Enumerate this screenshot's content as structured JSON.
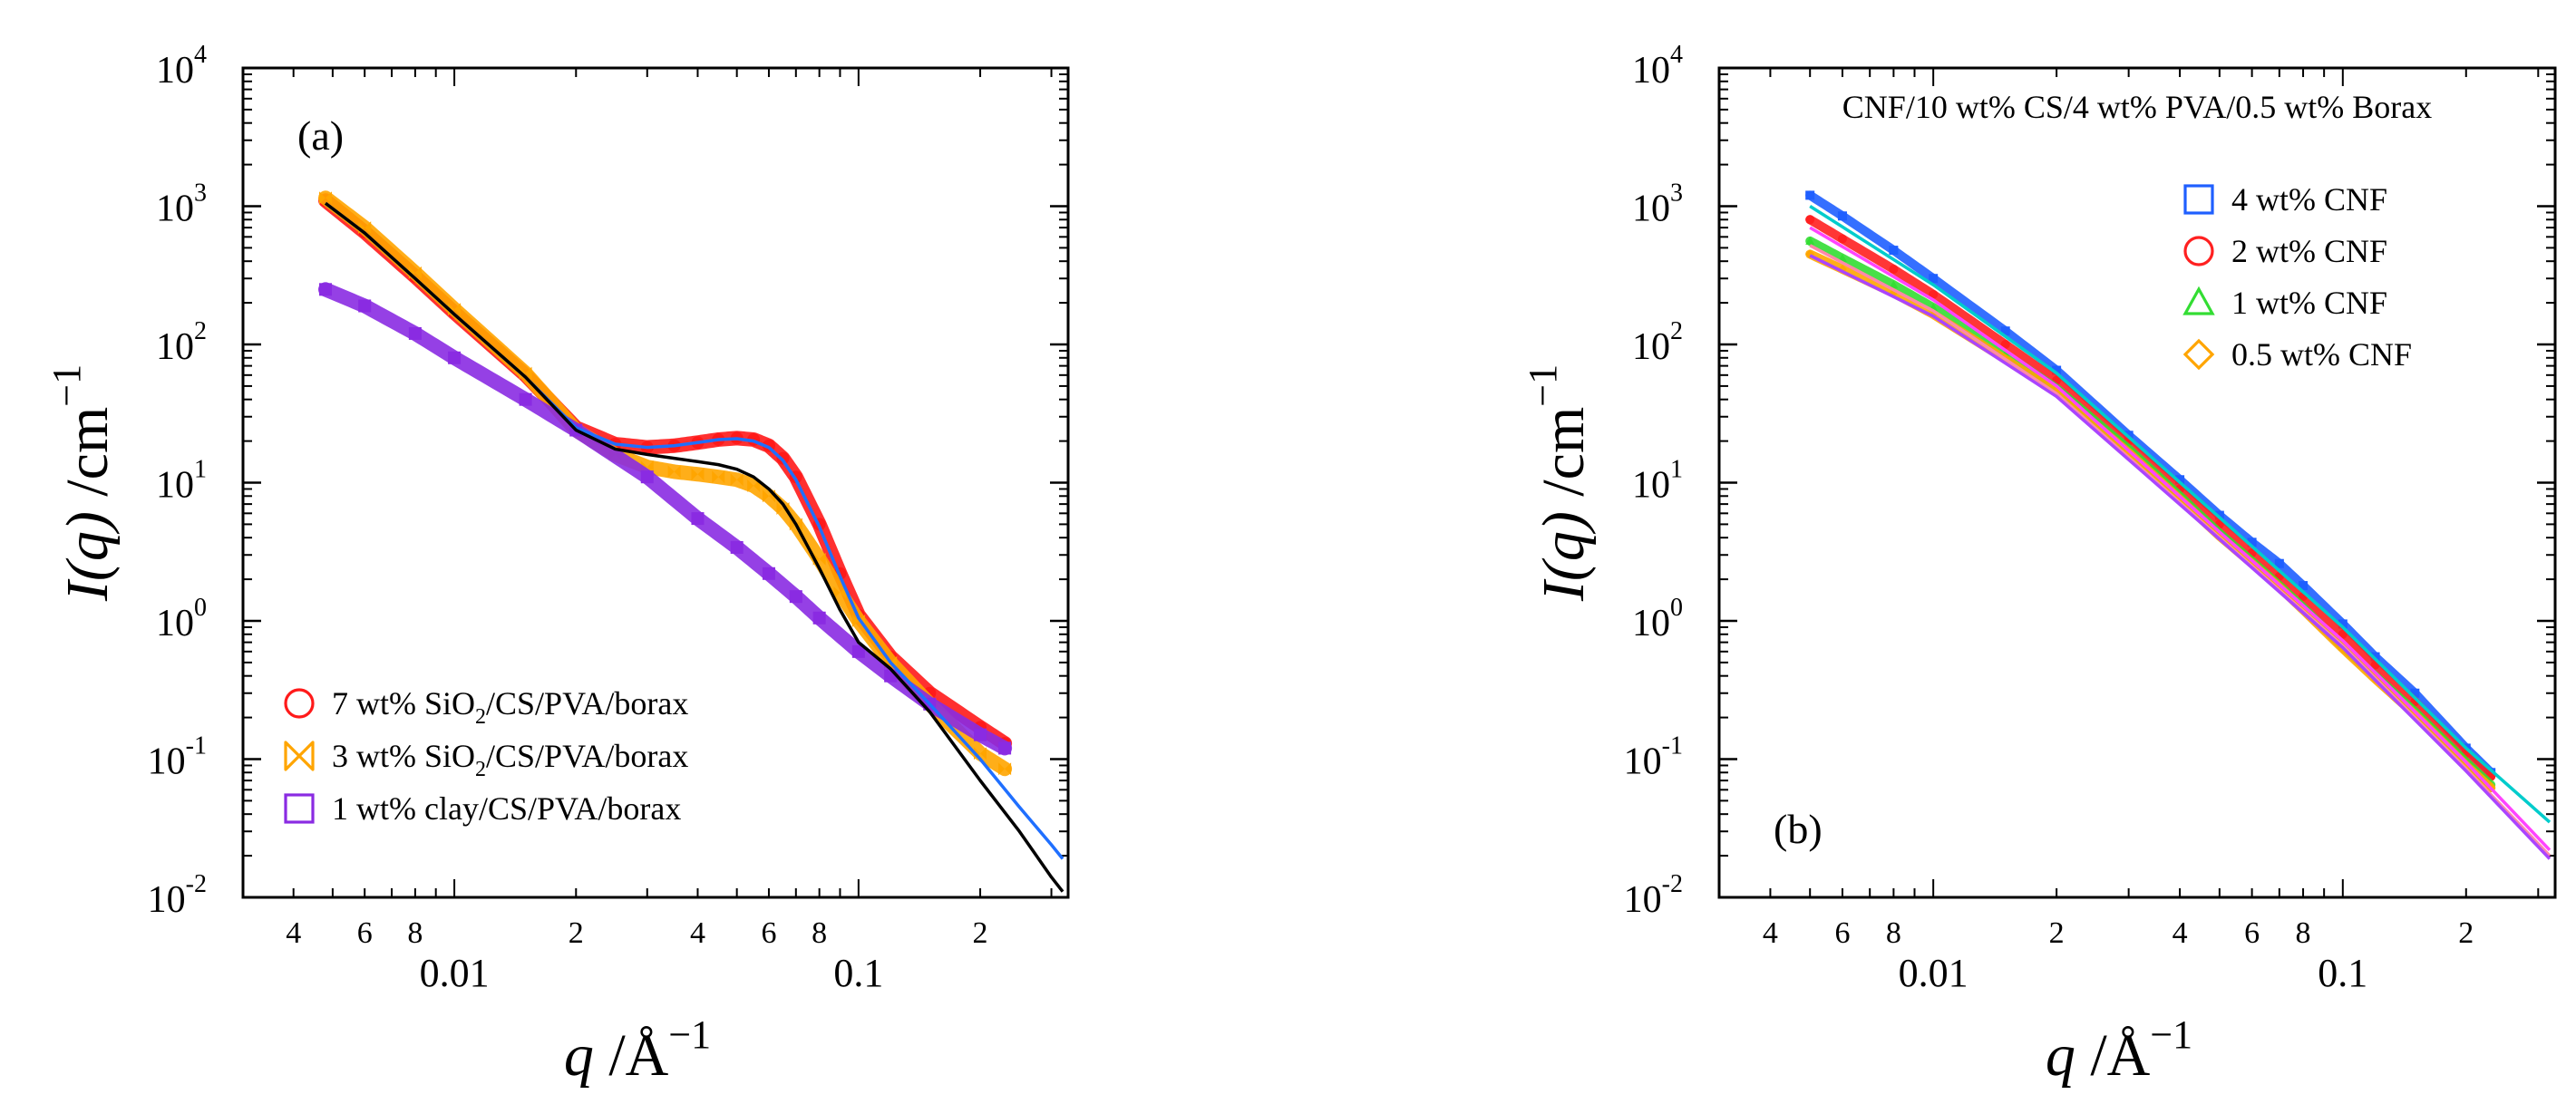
{
  "chart_data": [
    {
      "type": "scatter",
      "panel_label": "(a)",
      "title": "",
      "xlabel": {
        "var": "q",
        "unit": "Å",
        "exp": "−1"
      },
      "ylabel": {
        "var": "I(q)",
        "unit": "cm",
        "exp": "−1"
      },
      "xscale": "log",
      "yscale": "log",
      "xlim": [
        0.003,
        0.33
      ],
      "ylim": [
        0.01,
        10000
      ],
      "x_ticks": [
        {
          "v": 0.004,
          "label": "4"
        },
        {
          "v": 0.006,
          "label": "6"
        },
        {
          "v": 0.008,
          "label": "8"
        },
        {
          "v": 0.01,
          "label": "0.01"
        },
        {
          "v": 0.02,
          "label": "2"
        },
        {
          "v": 0.04,
          "label": "4"
        },
        {
          "v": 0.06,
          "label": "6"
        },
        {
          "v": 0.08,
          "label": "8"
        },
        {
          "v": 0.1,
          "label": "0.1"
        },
        {
          "v": 0.2,
          "label": "2"
        }
      ],
      "y_ticks": [
        {
          "v": 0.01,
          "base": "10",
          "exp": "-2"
        },
        {
          "v": 0.1,
          "base": "10",
          "exp": "-1"
        },
        {
          "v": 1,
          "base": "10",
          "exp": "0"
        },
        {
          "v": 10,
          "base": "10",
          "exp": "1"
        },
        {
          "v": 100,
          "base": "10",
          "exp": "2"
        },
        {
          "v": 1000,
          "base": "10",
          "exp": "3"
        },
        {
          "v": 10000,
          "base": "10",
          "exp": "4"
        }
      ],
      "legend_position": "bottom-left",
      "series": [
        {
          "name": "7 wt% SiO2/CS/PVA/borax",
          "name_parts": [
            "7 wt% SiO",
            "2",
            "/CS/PVA/borax"
          ],
          "marker": "circle",
          "color": "#ff1a1a",
          "x": [
            0.0048,
            0.006,
            0.008,
            0.01,
            0.015,
            0.02,
            0.025,
            0.03,
            0.035,
            0.04,
            0.045,
            0.05,
            0.055,
            0.06,
            0.065,
            0.07,
            0.08,
            0.09,
            0.1,
            0.12,
            0.15,
            0.2,
            0.23
          ],
          "y": [
            1100,
            650,
            310,
            170,
            60,
            25,
            19,
            18,
            18.5,
            19.5,
            20.5,
            21,
            20.5,
            18.5,
            15,
            11,
            5,
            2.2,
            1.1,
            0.55,
            0.3,
            0.17,
            0.13
          ]
        },
        {
          "name": "3 wt% SiO2/CS/PVA/borax",
          "name_parts": [
            "3 wt% SiO",
            "2",
            "/CS/PVA/borax"
          ],
          "marker": "bowtie",
          "color": "#ffa500",
          "x": [
            0.0048,
            0.006,
            0.008,
            0.01,
            0.015,
            0.02,
            0.025,
            0.03,
            0.035,
            0.04,
            0.045,
            0.05,
            0.055,
            0.06,
            0.065,
            0.07,
            0.08,
            0.09,
            0.1,
            0.12,
            0.15,
            0.2,
            0.23
          ],
          "y": [
            1150,
            700,
            330,
            180,
            62,
            24,
            16,
            13,
            12,
            11.5,
            11,
            10.5,
            9.5,
            8,
            6.5,
            5,
            2.8,
            1.6,
            1.0,
            0.5,
            0.25,
            0.11,
            0.085
          ]
        },
        {
          "name": "1 wt% clay/CS/PVA/borax",
          "name_parts": [
            "1 wt% clay/CS/PVA/borax"
          ],
          "marker": "square",
          "color": "#8a2be2",
          "x": [
            0.0048,
            0.006,
            0.008,
            0.01,
            0.015,
            0.02,
            0.03,
            0.04,
            0.05,
            0.06,
            0.07,
            0.08,
            0.1,
            0.12,
            0.15,
            0.2,
            0.23
          ],
          "y": [
            250,
            190,
            120,
            80,
            40,
            24,
            11,
            5.5,
            3.4,
            2.2,
            1.5,
            1.05,
            0.6,
            0.4,
            0.25,
            0.15,
            0.12
          ]
        }
      ],
      "fits": [
        {
          "color": "#1f6fff",
          "x": [
            0.0048,
            0.006,
            0.008,
            0.01,
            0.015,
            0.02,
            0.025,
            0.03,
            0.035,
            0.04,
            0.045,
            0.05,
            0.055,
            0.06,
            0.065,
            0.07,
            0.08,
            0.09,
            0.1,
            0.12,
            0.15,
            0.2,
            0.25,
            0.3,
            0.32
          ],
          "y": [
            1050,
            640,
            300,
            165,
            58,
            25,
            19,
            18,
            18.5,
            19.5,
            20.5,
            20.8,
            20,
            18,
            14.5,
            10.5,
            4.8,
            2.1,
            1.05,
            0.5,
            0.25,
            0.1,
            0.045,
            0.024,
            0.019
          ]
        },
        {
          "color": "#000000",
          "x": [
            0.0048,
            0.006,
            0.008,
            0.01,
            0.015,
            0.02,
            0.025,
            0.03,
            0.035,
            0.04,
            0.045,
            0.05,
            0.055,
            0.06,
            0.065,
            0.07,
            0.08,
            0.09,
            0.1,
            0.12,
            0.15,
            0.2,
            0.25,
            0.3,
            0.32
          ],
          "y": [
            1050,
            640,
            300,
            165,
            58,
            24,
            17.5,
            16,
            15,
            14.2,
            13.5,
            12.5,
            11,
            9,
            7,
            5,
            2.4,
            1.2,
            0.7,
            0.45,
            0.22,
            0.07,
            0.03,
            0.014,
            0.011
          ]
        }
      ]
    },
    {
      "type": "scatter",
      "panel_label": "(b)",
      "title": "CNF/10 wt% CS/4 wt% PVA/0.5 wt% Borax",
      "xlabel": {
        "var": "q",
        "unit": "Å",
        "exp": "−1"
      },
      "ylabel": {
        "var": "I(q)",
        "unit": "cm",
        "exp": "−1"
      },
      "xscale": "log",
      "yscale": "log",
      "xlim": [
        0.003,
        0.33
      ],
      "ylim": [
        0.01,
        10000
      ],
      "x_ticks": [
        {
          "v": 0.004,
          "label": "4"
        },
        {
          "v": 0.006,
          "label": "6"
        },
        {
          "v": 0.008,
          "label": "8"
        },
        {
          "v": 0.01,
          "label": "0.01"
        },
        {
          "v": 0.02,
          "label": "2"
        },
        {
          "v": 0.04,
          "label": "4"
        },
        {
          "v": 0.06,
          "label": "6"
        },
        {
          "v": 0.08,
          "label": "8"
        },
        {
          "v": 0.1,
          "label": "0.1"
        },
        {
          "v": 0.2,
          "label": "2"
        }
      ],
      "y_ticks": [
        {
          "v": 0.01,
          "base": "10",
          "exp": "-2"
        },
        {
          "v": 0.1,
          "base": "10",
          "exp": "-1"
        },
        {
          "v": 1,
          "base": "10",
          "exp": "0"
        },
        {
          "v": 10,
          "base": "10",
          "exp": "1"
        },
        {
          "v": 100,
          "base": "10",
          "exp": "2"
        },
        {
          "v": 1000,
          "base": "10",
          "exp": "3"
        },
        {
          "v": 10000,
          "base": "10",
          "exp": "4"
        }
      ],
      "legend_position": "top-right",
      "series": [
        {
          "name": "4 wt% CNF",
          "name_parts": [
            "4 wt% CNF"
          ],
          "marker": "square",
          "color": "#1f5fff",
          "x": [
            0.005,
            0.006,
            0.008,
            0.01,
            0.015,
            0.02,
            0.03,
            0.04,
            0.05,
            0.06,
            0.07,
            0.08,
            0.1,
            0.12,
            0.15,
            0.2,
            0.23
          ],
          "y": [
            1200,
            850,
            480,
            300,
            125,
            65,
            22,
            10.5,
            5.8,
            3.7,
            2.6,
            1.8,
            0.95,
            0.55,
            0.3,
            0.12,
            0.08
          ]
        },
        {
          "name": "2 wt% CNF",
          "name_parts": [
            "2 wt% CNF"
          ],
          "marker": "circle",
          "color": "#ff2020",
          "x": [
            0.005,
            0.006,
            0.008,
            0.01,
            0.015,
            0.02,
            0.03,
            0.04,
            0.05,
            0.06,
            0.07,
            0.08,
            0.1,
            0.12,
            0.15,
            0.2,
            0.23
          ],
          "y": [
            800,
            580,
            350,
            230,
            100,
            55,
            20,
            9,
            5,
            3.1,
            2.1,
            1.5,
            0.8,
            0.48,
            0.26,
            0.11,
            0.075
          ]
        },
        {
          "name": "1 wt% CNF",
          "name_parts": [
            "1 wt% CNF"
          ],
          "marker": "triangle",
          "color": "#33dd33",
          "x": [
            0.005,
            0.006,
            0.008,
            0.01,
            0.015,
            0.02,
            0.03,
            0.04,
            0.05,
            0.06,
            0.07,
            0.08,
            0.1,
            0.12,
            0.15,
            0.2,
            0.23
          ],
          "y": [
            560,
            420,
            270,
            185,
            85,
            48,
            17.5,
            8,
            4.3,
            2.7,
            1.8,
            1.25,
            0.65,
            0.4,
            0.22,
            0.095,
            0.065
          ]
        },
        {
          "name": "0.5 wt% CNF",
          "name_parts": [
            "0.5 wt% CNF"
          ],
          "marker": "diamond",
          "color": "#ffa500",
          "x": [
            0.005,
            0.006,
            0.008,
            0.01,
            0.015,
            0.02,
            0.03,
            0.04,
            0.05,
            0.06,
            0.07,
            0.08,
            0.1,
            0.12,
            0.15,
            0.2,
            0.23
          ],
          "y": [
            450,
            350,
            235,
            165,
            78,
            45,
            16.5,
            7.6,
            4.1,
            2.6,
            1.75,
            1.2,
            0.63,
            0.38,
            0.21,
            0.09,
            0.062
          ]
        }
      ],
      "fits": [
        {
          "color": "#00cccc",
          "x": [
            0.005,
            0.01,
            0.02,
            0.05,
            0.1,
            0.2,
            0.32
          ],
          "y": [
            1000,
            270,
            62,
            5.6,
            0.9,
            0.12,
            0.035
          ]
        },
        {
          "color": "#ff44ff",
          "x": [
            0.005,
            0.01,
            0.02,
            0.05,
            0.1,
            0.2,
            0.32
          ],
          "y": [
            700,
            210,
            50,
            4.4,
            0.72,
            0.095,
            0.022
          ]
        },
        {
          "color": "#ff88aa",
          "x": [
            0.005,
            0.01,
            0.02,
            0.05,
            0.1,
            0.2,
            0.32
          ],
          "y": [
            520,
            175,
            44,
            4,
            0.66,
            0.085,
            0.02
          ]
        },
        {
          "color": "#aa44ff",
          "x": [
            0.005,
            0.01,
            0.02,
            0.05,
            0.1,
            0.2,
            0.32
          ],
          "y": [
            440,
            160,
            42,
            3.9,
            0.64,
            0.082,
            0.019
          ]
        }
      ]
    }
  ]
}
